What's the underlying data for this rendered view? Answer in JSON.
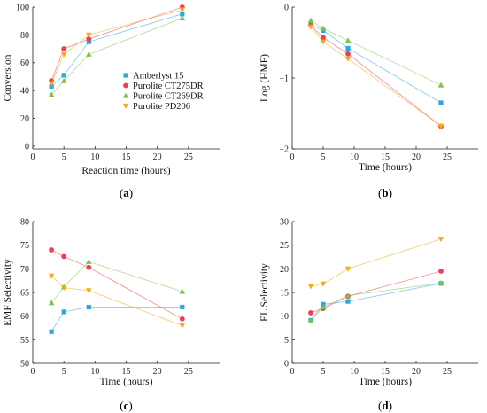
{
  "colors": {
    "Amberlyst 15": "#29a9e0",
    "Purolite CT275DR": "#ee3f52",
    "Purolite CT269DR": "#7dc24b",
    "Purolite PD206": "#f7a816",
    "axis": "#222222"
  },
  "chart_data": [
    {
      "id": "a",
      "type": "line",
      "panel_label": "a",
      "xlabel": "Reaction time (hours)",
      "ylabel": "Conversion",
      "xlim": [
        0,
        30
      ],
      "ylim": [
        -2,
        100
      ],
      "xticks": [
        0,
        5,
        10,
        15,
        20,
        25
      ],
      "yticks": [
        0,
        20,
        40,
        60,
        80,
        100
      ],
      "ytick_labels": [
        "0",
        "20",
        "40",
        "60",
        "80",
        "100"
      ],
      "grid": false,
      "legend_position": "center-right",
      "series": [
        {
          "name": "Amberlyst 15",
          "marker": "square",
          "x": [
            3,
            5,
            9,
            24
          ],
          "y": [
            43,
            51,
            75,
            95
          ]
        },
        {
          "name": "Purolite CT275DR",
          "marker": "circle",
          "x": [
            3,
            5,
            9,
            24
          ],
          "y": [
            47,
            70,
            77,
            100
          ]
        },
        {
          "name": "Purolite CT269DR",
          "marker": "triangle-up",
          "x": [
            3,
            5,
            9,
            24
          ],
          "y": [
            37,
            47,
            66,
            92
          ]
        },
        {
          "name": "Purolite PD206",
          "marker": "triangle-down",
          "x": [
            3,
            5,
            9,
            24
          ],
          "y": [
            45,
            66,
            80,
            98
          ]
        }
      ]
    },
    {
      "id": "b",
      "type": "line",
      "panel_label": "b",
      "xlabel": "Time (hours)",
      "ylabel": "Log (HMF)",
      "xlim": [
        0,
        30
      ],
      "ylim": [
        -2,
        0
      ],
      "xticks": [
        0,
        5,
        10,
        15,
        20,
        25
      ],
      "yticks": [
        0,
        -1,
        -2
      ],
      "ytick_labels": [
        "0",
        "−1",
        "−2"
      ],
      "grid": false,
      "series": [
        {
          "name": "Amberlyst 15",
          "marker": "square",
          "x": [
            3,
            5,
            9,
            24
          ],
          "y": [
            -0.25,
            -0.33,
            -0.58,
            -1.35
          ]
        },
        {
          "name": "Purolite CT275DR",
          "marker": "circle",
          "x": [
            3,
            5,
            9,
            24
          ],
          "y": [
            -0.26,
            -0.43,
            -0.66,
            -1.68
          ]
        },
        {
          "name": "Purolite CT269DR",
          "marker": "triangle-up",
          "x": [
            3,
            5,
            9,
            24
          ],
          "y": [
            -0.19,
            -0.3,
            -0.47,
            -1.1
          ]
        },
        {
          "name": "Purolite PD206",
          "marker": "triangle-down",
          "x": [
            3,
            5,
            9,
            24
          ],
          "y": [
            -0.28,
            -0.49,
            -0.73,
            -1.68
          ]
        }
      ]
    },
    {
      "id": "c",
      "type": "line",
      "panel_label": "c",
      "xlabel": "Time (hours)",
      "ylabel": "EMF Selectivity",
      "xlim": [
        0,
        30
      ],
      "ylim": [
        50,
        80
      ],
      "xticks": [
        0,
        5,
        10,
        15,
        20,
        25
      ],
      "yticks": [
        50,
        55,
        60,
        65,
        70,
        75,
        80
      ],
      "ytick_labels": [
        "50",
        "55",
        "60",
        "65",
        "70",
        "75",
        "80"
      ],
      "grid": false,
      "series": [
        {
          "name": "Amberlyst 15",
          "marker": "square",
          "x": [
            3,
            5,
            9,
            24
          ],
          "y": [
            56.7,
            60.9,
            61.9,
            61.9
          ]
        },
        {
          "name": "Purolite CT275DR",
          "marker": "circle",
          "x": [
            3,
            5,
            9,
            24
          ],
          "y": [
            74.0,
            72.6,
            70.3,
            59.4
          ]
        },
        {
          "name": "Purolite CT269DR",
          "marker": "triangle-up",
          "x": [
            3,
            5,
            9,
            24
          ],
          "y": [
            62.8,
            66.2,
            71.5,
            65.2
          ]
        },
        {
          "name": "Purolite PD206",
          "marker": "triangle-down",
          "x": [
            3,
            5,
            9,
            24
          ],
          "y": [
            68.5,
            66.0,
            65.4,
            58.0
          ]
        }
      ]
    },
    {
      "id": "d",
      "type": "line",
      "panel_label": "d",
      "xlabel": "Time (hours)",
      "ylabel": "EL Selectivity",
      "xlim": [
        0,
        30
      ],
      "ylim": [
        0,
        30
      ],
      "xticks": [
        0,
        5,
        10,
        15,
        20,
        25
      ],
      "yticks": [
        0,
        5,
        10,
        15,
        20,
        25,
        30
      ],
      "ytick_labels": [
        "0",
        "5",
        "10",
        "15",
        "20",
        "25",
        "30"
      ],
      "grid": false,
      "series": [
        {
          "name": "Amberlyst 15",
          "marker": "square",
          "x": [
            3,
            5,
            9,
            24
          ],
          "y": [
            9.1,
            12.5,
            13.1,
            16.9
          ]
        },
        {
          "name": "Purolite CT275DR",
          "marker": "circle",
          "x": [
            3,
            5,
            9,
            24
          ],
          "y": [
            10.7,
            11.6,
            14.2,
            19.5
          ]
        },
        {
          "name": "Purolite CT269DR",
          "marker": "triangle-up",
          "x": [
            3,
            5,
            9,
            24
          ],
          "y": [
            9.0,
            11.9,
            14.3,
            17.0
          ]
        },
        {
          "name": "Purolite PD206",
          "marker": "triangle-down",
          "x": [
            3,
            5,
            9,
            24
          ],
          "y": [
            16.3,
            16.8,
            20.0,
            26.3
          ]
        }
      ]
    }
  ]
}
